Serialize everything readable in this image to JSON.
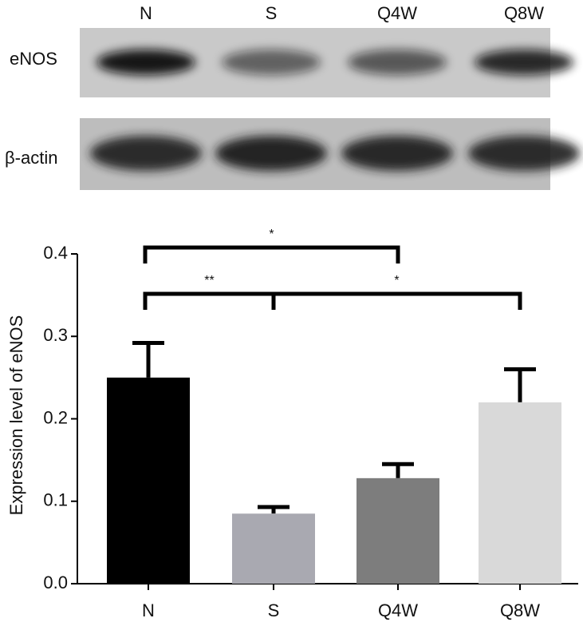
{
  "blot": {
    "lanes": [
      "N",
      "S",
      "Q4W",
      "Q8W"
    ],
    "rows": [
      "eNOS",
      "β-actin"
    ]
  },
  "chart_data": {
    "type": "bar",
    "y_label": "Expression level of eNOS",
    "categories": [
      "N",
      "S",
      "Q4W",
      "Q8W"
    ],
    "values": [
      0.25,
      0.085,
      0.128,
      0.22
    ],
    "errors": [
      0.042,
      0.008,
      0.017,
      0.04
    ],
    "colors": [
      "#000000",
      "#a9a9b1",
      "#7d7d7d",
      "#d9d9d9"
    ],
    "ylim": [
      0,
      0.4
    ],
    "yticks": [
      {
        "value": 0,
        "label": "0.0"
      },
      0.1,
      0.2,
      0.3,
      0.4
    ],
    "annotations": [
      "*",
      "**",
      "*"
    ]
  }
}
